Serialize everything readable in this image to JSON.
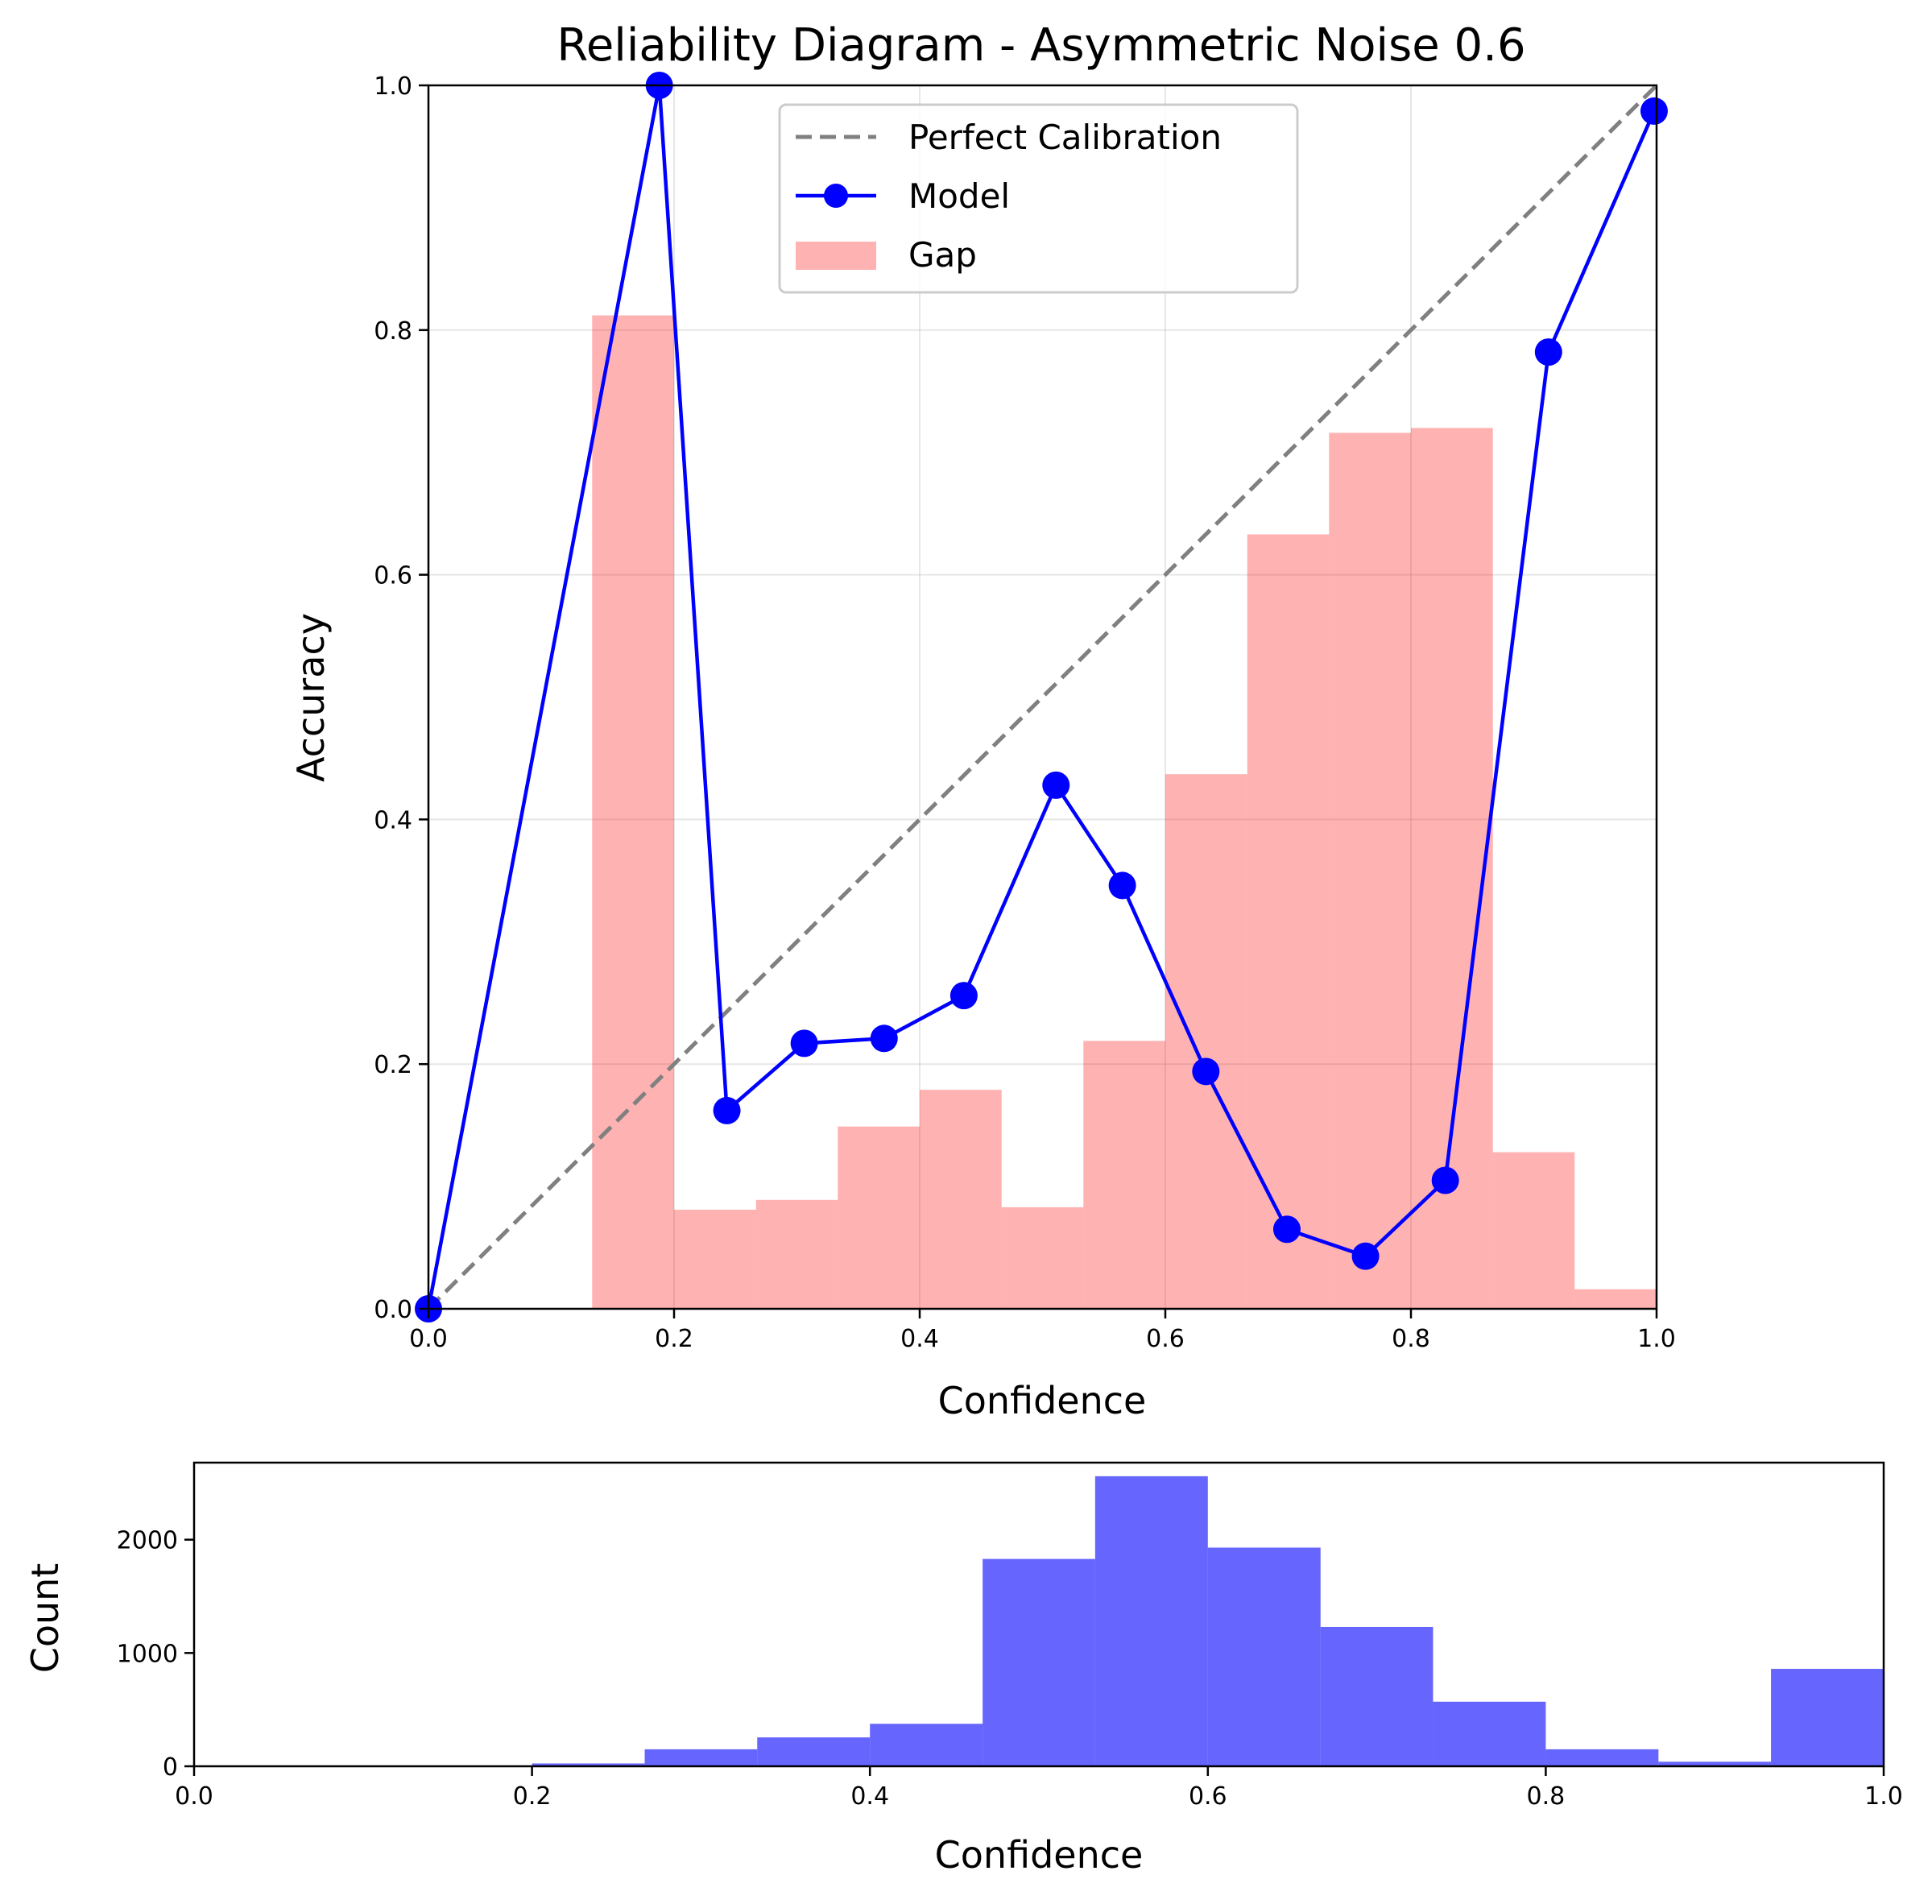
{
  "chart_data": [
    {
      "type": "line",
      "title": "Reliability Diagram - Asymmetric Noise 0.6",
      "xlabel": "Confidence",
      "ylabel": "Accuracy",
      "xlim": [
        0.0,
        1.0
      ],
      "ylim": [
        0.0,
        1.0
      ],
      "xticks": [
        "0.0",
        "0.2",
        "0.4",
        "0.6",
        "0.8",
        "1.0"
      ],
      "yticks": [
        "0.0",
        "0.2",
        "0.4",
        "0.6",
        "0.8",
        "1.0"
      ],
      "grid": true,
      "legend_position": "top-center",
      "series": [
        {
          "name": "Perfect Calibration",
          "kind": "dashed-line",
          "color": "#808080",
          "x": [
            0.0,
            1.0
          ],
          "y": [
            0.0,
            1.0
          ]
        },
        {
          "name": "Model",
          "kind": "line-marker",
          "color": "#0000ff",
          "x": [
            0.0,
            0.188,
            0.243,
            0.306,
            0.371,
            0.436,
            0.511,
            0.565,
            0.633,
            0.699,
            0.763,
            0.828,
            0.912,
            0.998
          ],
          "y": [
            0.0,
            1.0,
            0.162,
            0.217,
            0.221,
            0.256,
            0.428,
            0.346,
            0.194,
            0.065,
            0.043,
            0.105,
            0.782,
            0.979
          ]
        },
        {
          "name": "Gap",
          "kind": "bars",
          "color": "#ff0000",
          "opacity": 0.3,
          "bin_edges": [
            0.1333,
            0.2,
            0.2667,
            0.3333,
            0.4,
            0.4667,
            0.5333,
            0.6,
            0.6667,
            0.7333,
            0.8,
            0.8667,
            0.9333,
            1.0
          ],
          "values": [
            0.812,
            0.081,
            0.089,
            0.149,
            0.179,
            0.083,
            0.219,
            0.437,
            0.633,
            0.716,
            0.72,
            0.128,
            0.016
          ]
        }
      ]
    },
    {
      "type": "bar",
      "title": "",
      "xlabel": "Confidence",
      "ylabel": "Count",
      "xlim": [
        0.0,
        1.0
      ],
      "ylim": [
        0,
        2680
      ],
      "xticks": [
        "0.0",
        "0.2",
        "0.4",
        "0.6",
        "0.8",
        "1.0"
      ],
      "yticks": [
        "0",
        "1000",
        "2000"
      ],
      "ytick_values": [
        0,
        1000,
        2000
      ],
      "grid": false,
      "color": "#0000ff",
      "opacity": 0.6,
      "bin_edges": [
        0.2,
        0.2667,
        0.3333,
        0.4,
        0.4667,
        0.5333,
        0.6,
        0.6667,
        0.7333,
        0.8,
        0.8667,
        0.9333,
        1.0
      ],
      "values": [
        25,
        150,
        255,
        375,
        1830,
        2560,
        1930,
        1230,
        570,
        150,
        40,
        860
      ]
    }
  ]
}
